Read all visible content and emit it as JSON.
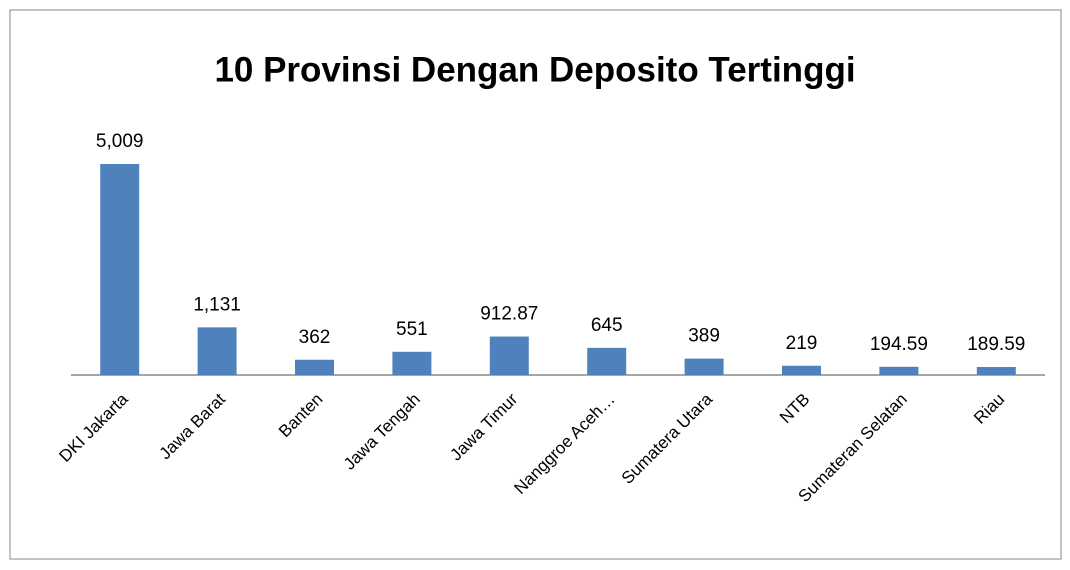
{
  "chart_data": {
    "type": "bar",
    "title": "10 Provinsi Dengan Deposito Tertinggi",
    "categories": [
      "DKI Jakarta",
      "Jawa Barat",
      "Banten",
      "Jawa Tengah",
      "Jawa Timur",
      "Nanggroe Aceh…",
      "Sumatera Utara",
      "NTB",
      "Sumateran Selatan",
      "Riau"
    ],
    "values": [
      5009,
      1131,
      362,
      551,
      912.87,
      645,
      389,
      219,
      194.59,
      189.59
    ],
    "value_labels": [
      "5,009",
      "1,131",
      "362",
      "551",
      "912.87",
      "645",
      "389",
      "219",
      "194.59",
      "189.59"
    ],
    "color": "#4f81bd"
  }
}
